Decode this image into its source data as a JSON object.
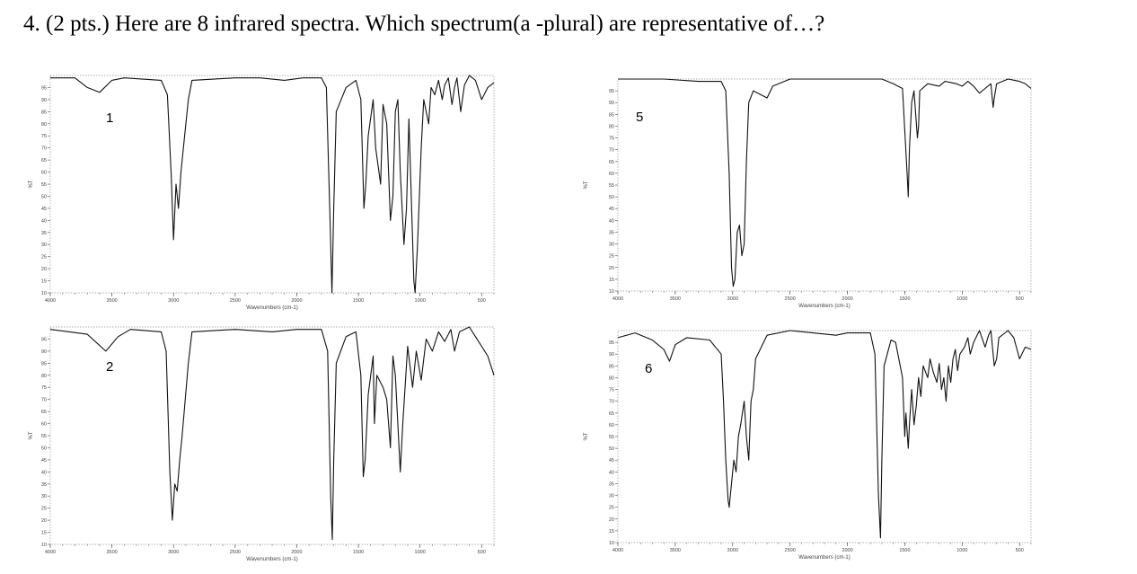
{
  "question": {
    "text": "4.  (2 pts.) Here are 8 infrared spectra.  Which spectrum(a -plural) are representative of…?"
  },
  "chart_data": [
    {
      "type": "line",
      "label": "1",
      "ylabel": "%T",
      "xlabel": "Wavenumbers (cm-1)",
      "xlim": [
        4000,
        400
      ],
      "ylim": [
        10,
        100
      ],
      "x_ticks": [
        4000,
        3500,
        3000,
        2500,
        2000,
        1500,
        1000,
        500
      ],
      "y_ticks": [
        10,
        15,
        20,
        25,
        30,
        35,
        40,
        45,
        50,
        55,
        60,
        65,
        70,
        75,
        80,
        85,
        90,
        95
      ],
      "points": [
        [
          4000,
          99
        ],
        [
          3800,
          99
        ],
        [
          3700,
          95
        ],
        [
          3600,
          93
        ],
        [
          3500,
          98
        ],
        [
          3400,
          99
        ],
        [
          3100,
          98
        ],
        [
          3050,
          92
        ],
        [
          3020,
          60
        ],
        [
          3000,
          32
        ],
        [
          2980,
          55
        ],
        [
          2960,
          45
        ],
        [
          2940,
          60
        ],
        [
          2920,
          70
        ],
        [
          2880,
          90
        ],
        [
          2850,
          98
        ],
        [
          2500,
          99
        ],
        [
          2300,
          99
        ],
        [
          2100,
          98
        ],
        [
          1950,
          99
        ],
        [
          1800,
          99
        ],
        [
          1760,
          95
        ],
        [
          1730,
          40
        ],
        [
          1715,
          10
        ],
        [
          1700,
          45
        ],
        [
          1680,
          85
        ],
        [
          1600,
          95
        ],
        [
          1520,
          98
        ],
        [
          1480,
          90
        ],
        [
          1455,
          45
        ],
        [
          1440,
          55
        ],
        [
          1420,
          75
        ],
        [
          1380,
          90
        ],
        [
          1360,
          70
        ],
        [
          1320,
          55
        ],
        [
          1300,
          88
        ],
        [
          1270,
          80
        ],
        [
          1240,
          40
        ],
        [
          1220,
          50
        ],
        [
          1200,
          85
        ],
        [
          1180,
          90
        ],
        [
          1160,
          60
        ],
        [
          1130,
          30
        ],
        [
          1110,
          45
        ],
        [
          1090,
          82
        ],
        [
          1050,
          15
        ],
        [
          1040,
          10
        ],
        [
          1020,
          30
        ],
        [
          990,
          70
        ],
        [
          970,
          90
        ],
        [
          930,
          80
        ],
        [
          910,
          95
        ],
        [
          880,
          92
        ],
        [
          850,
          98
        ],
        [
          820,
          90
        ],
        [
          800,
          96
        ],
        [
          770,
          99
        ],
        [
          740,
          88
        ],
        [
          720,
          95
        ],
        [
          700,
          99
        ],
        [
          670,
          85
        ],
        [
          640,
          96
        ],
        [
          600,
          100
        ],
        [
          550,
          98
        ],
        [
          500,
          90
        ],
        [
          450,
          95
        ],
        [
          400,
          97
        ]
      ]
    },
    {
      "type": "line",
      "label": "2",
      "ylabel": "%T",
      "xlabel": "Wavenumbers (cm-1)",
      "xlim": [
        4000,
        400
      ],
      "ylim": [
        10,
        100
      ],
      "x_ticks": [
        4000,
        3500,
        3000,
        2500,
        2000,
        1500,
        1000,
        500
      ],
      "y_ticks": [
        10,
        15,
        20,
        25,
        30,
        35,
        40,
        45,
        50,
        55,
        60,
        65,
        70,
        75,
        80,
        85,
        90,
        95
      ],
      "points": [
        [
          4000,
          99
        ],
        [
          3700,
          97
        ],
        [
          3550,
          90
        ],
        [
          3450,
          96
        ],
        [
          3350,
          99
        ],
        [
          3100,
          98
        ],
        [
          3060,
          90
        ],
        [
          3030,
          40
        ],
        [
          3010,
          20
        ],
        [
          2990,
          35
        ],
        [
          2970,
          32
        ],
        [
          2950,
          45
        ],
        [
          2930,
          55
        ],
        [
          2880,
          85
        ],
        [
          2850,
          98
        ],
        [
          2500,
          99
        ],
        [
          2200,
          98
        ],
        [
          2000,
          99
        ],
        [
          1800,
          99
        ],
        [
          1750,
          90
        ],
        [
          1725,
          30
        ],
        [
          1712,
          12
        ],
        [
          1700,
          45
        ],
        [
          1680,
          85
        ],
        [
          1600,
          96
        ],
        [
          1520,
          98
        ],
        [
          1480,
          80
        ],
        [
          1460,
          38
        ],
        [
          1445,
          45
        ],
        [
          1420,
          72
        ],
        [
          1380,
          88
        ],
        [
          1370,
          60
        ],
        [
          1350,
          80
        ],
        [
          1300,
          75
        ],
        [
          1270,
          70
        ],
        [
          1240,
          50
        ],
        [
          1220,
          88
        ],
        [
          1200,
          80
        ],
        [
          1160,
          40
        ],
        [
          1140,
          60
        ],
        [
          1100,
          92
        ],
        [
          1060,
          75
        ],
        [
          1030,
          90
        ],
        [
          990,
          78
        ],
        [
          950,
          95
        ],
        [
          900,
          90
        ],
        [
          850,
          98
        ],
        [
          800,
          94
        ],
        [
          750,
          99
        ],
        [
          720,
          90
        ],
        [
          680,
          98
        ],
        [
          600,
          100
        ],
        [
          550,
          96
        ],
        [
          500,
          92
        ],
        [
          450,
          88
        ],
        [
          400,
          80
        ]
      ]
    },
    {
      "type": "line",
      "label": "5",
      "ylabel": "%T",
      "xlabel": "Wavenumbers (cm-1)",
      "xlim": [
        4000,
        400
      ],
      "ylim": [
        10,
        100
      ],
      "x_ticks": [
        4000,
        3500,
        3000,
        2500,
        2000,
        1500,
        1000,
        500
      ],
      "y_ticks": [
        10,
        15,
        20,
        25,
        30,
        35,
        40,
        45,
        50,
        55,
        60,
        65,
        70,
        75,
        80,
        85,
        90,
        95
      ],
      "points": [
        [
          4000,
          100
        ],
        [
          3600,
          100
        ],
        [
          3300,
          99
        ],
        [
          3100,
          99
        ],
        [
          3060,
          95
        ],
        [
          3030,
          60
        ],
        [
          3010,
          20
        ],
        [
          2995,
          12
        ],
        [
          2980,
          15
        ],
        [
          2960,
          35
        ],
        [
          2940,
          38
        ],
        [
          2920,
          25
        ],
        [
          2900,
          30
        ],
        [
          2880,
          65
        ],
        [
          2860,
          90
        ],
        [
          2820,
          95
        ],
        [
          2700,
          92
        ],
        [
          2650,
          97
        ],
        [
          2500,
          100
        ],
        [
          2000,
          100
        ],
        [
          1700,
          100
        ],
        [
          1600,
          98
        ],
        [
          1520,
          96
        ],
        [
          1480,
          60
        ],
        [
          1470,
          50
        ],
        [
          1460,
          70
        ],
        [
          1440,
          90
        ],
        [
          1420,
          95
        ],
        [
          1390,
          75
        ],
        [
          1380,
          80
        ],
        [
          1370,
          95
        ],
        [
          1300,
          98
        ],
        [
          1200,
          97
        ],
        [
          1150,
          99
        ],
        [
          1050,
          98
        ],
        [
          1000,
          97
        ],
        [
          950,
          99
        ],
        [
          900,
          97
        ],
        [
          850,
          94
        ],
        [
          800,
          96
        ],
        [
          750,
          98
        ],
        [
          730,
          88
        ],
        [
          720,
          92
        ],
        [
          700,
          98
        ],
        [
          600,
          100
        ],
        [
          500,
          99
        ],
        [
          450,
          98
        ],
        [
          400,
          96
        ]
      ]
    },
    {
      "type": "line",
      "label": "6",
      "ylabel": "%T",
      "xlabel": "Wavenumbers (cm-1)",
      "xlim": [
        4000,
        400
      ],
      "ylim": [
        10,
        100
      ],
      "x_ticks": [
        4000,
        3500,
        3000,
        2500,
        2000,
        1500,
        1000,
        500
      ],
      "y_ticks": [
        10,
        15,
        20,
        25,
        30,
        35,
        40,
        45,
        50,
        55,
        60,
        65,
        70,
        75,
        80,
        85,
        90,
        95
      ],
      "points": [
        [
          4000,
          97
        ],
        [
          3850,
          99
        ],
        [
          3700,
          96
        ],
        [
          3600,
          92
        ],
        [
          3550,
          87
        ],
        [
          3500,
          94
        ],
        [
          3400,
          97
        ],
        [
          3200,
          96
        ],
        [
          3100,
          90
        ],
        [
          3080,
          70
        ],
        [
          3060,
          45
        ],
        [
          3040,
          28
        ],
        [
          3030,
          25
        ],
        [
          3010,
          35
        ],
        [
          2990,
          45
        ],
        [
          2970,
          40
        ],
        [
          2950,
          55
        ],
        [
          2930,
          60
        ],
        [
          2900,
          70
        ],
        [
          2880,
          55
        ],
        [
          2860,
          45
        ],
        [
          2840,
          70
        ],
        [
          2820,
          75
        ],
        [
          2800,
          88
        ],
        [
          2700,
          98
        ],
        [
          2500,
          100
        ],
        [
          2300,
          99
        ],
        [
          2100,
          98
        ],
        [
          2000,
          99
        ],
        [
          1800,
          99
        ],
        [
          1760,
          90
        ],
        [
          1730,
          30
        ],
        [
          1712,
          12
        ],
        [
          1700,
          45
        ],
        [
          1680,
          85
        ],
        [
          1620,
          96
        ],
        [
          1580,
          95
        ],
        [
          1520,
          80
        ],
        [
          1500,
          55
        ],
        [
          1490,
          65
        ],
        [
          1470,
          50
        ],
        [
          1460,
          60
        ],
        [
          1440,
          75
        ],
        [
          1420,
          60
        ],
        [
          1400,
          68
        ],
        [
          1380,
          80
        ],
        [
          1360,
          72
        ],
        [
          1340,
          85
        ],
        [
          1300,
          80
        ],
        [
          1280,
          88
        ],
        [
          1250,
          82
        ],
        [
          1220,
          78
        ],
        [
          1200,
          86
        ],
        [
          1180,
          75
        ],
        [
          1160,
          80
        ],
        [
          1140,
          70
        ],
        [
          1120,
          85
        ],
        [
          1100,
          78
        ],
        [
          1080,
          88
        ],
        [
          1060,
          92
        ],
        [
          1040,
          83
        ],
        [
          1020,
          90
        ],
        [
          980,
          93
        ],
        [
          950,
          97
        ],
        [
          930,
          90
        ],
        [
          900,
          95
        ],
        [
          850,
          100
        ],
        [
          800,
          93
        ],
        [
          770,
          98
        ],
        [
          750,
          100
        ],
        [
          720,
          85
        ],
        [
          700,
          88
        ],
        [
          680,
          97
        ],
        [
          600,
          100
        ],
        [
          550,
          97
        ],
        [
          500,
          88
        ],
        [
          450,
          93
        ],
        [
          400,
          92
        ]
      ]
    }
  ]
}
